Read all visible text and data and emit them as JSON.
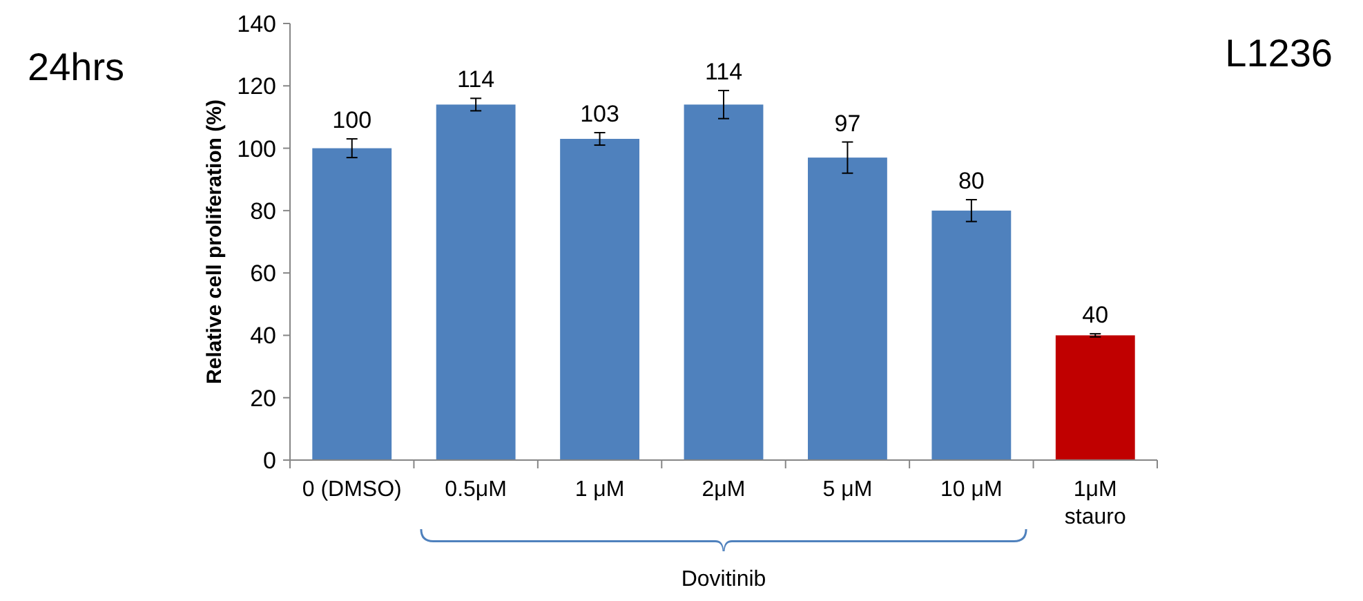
{
  "chart_data": {
    "type": "bar",
    "categories": [
      "0 (DMSO)",
      "0.5μM",
      "1 μM",
      "2μM",
      "5 μM",
      "10 μM",
      "1μM stauro"
    ],
    "values": [
      100,
      114,
      103,
      114,
      97,
      80,
      40
    ],
    "errors": [
      3,
      2,
      2,
      4.5,
      5,
      3.5,
      0.5
    ],
    "colors": [
      "#4f81bd",
      "#4f81bd",
      "#4f81bd",
      "#4f81bd",
      "#4f81bd",
      "#4f81bd",
      "#c00000"
    ],
    "data_labels": true,
    "ylabel": "Relative cell proliferation (%)",
    "ylim": [
      0,
      140
    ],
    "yticks": [
      0,
      20,
      40,
      60,
      80,
      100,
      120,
      140
    ],
    "annotations": [
      "24hrs",
      "L1236",
      "Dovitinib"
    ]
  }
}
